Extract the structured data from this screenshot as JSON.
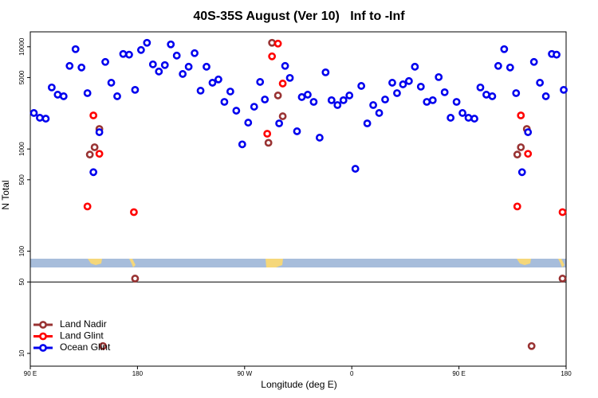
{
  "chart_data": {
    "type": "scatter",
    "title": "40S-35S August (Ver 10)   Inf to -Inf",
    "x_label": "Longitude (deg E)",
    "y_label": "N Total",
    "log_y": true,
    "legend": "lower left",
    "reference_line": 50,
    "xlim": [
      90,
      540
    ],
    "xticks": [
      {
        "value": 90,
        "label": "90 E"
      },
      180,
      {
        "value": 270,
        "label": "90 W"
      },
      {
        "value": 360,
        "label": "0"
      },
      {
        "value": 450,
        "label": "90 E"
      },
      {
        "value": 540,
        "label": "180"
      }
    ],
    "ylim": [
      7.5,
      14000
    ],
    "yticks": [
      10,
      50,
      100,
      500,
      1000,
      5000,
      10000
    ],
    "series": [
      {
        "name": "Land Nadir",
        "color": "#993333",
        "x": [
          140,
          144,
          148,
          151,
          178,
          290,
          293,
          298,
          302,
          499,
          502,
          507,
          511,
          537
        ],
        "values": [
          882,
          1040,
          1570,
          11.8,
          54,
          1150,
          10940,
          3340,
          2090,
          882,
          1040,
          1570,
          11.8,
          54
        ]
      },
      {
        "name": "Land Glint",
        "color": "#ff0000",
        "x": [
          138,
          143,
          148,
          177,
          289,
          293,
          298,
          302,
          499,
          502,
          508,
          537
        ],
        "values": [
          274,
          2130,
          897,
          241,
          1410,
          8060,
          10740,
          4370,
          274,
          2130,
          897,
          241
        ]
      },
      {
        "name": "Ocean Glint",
        "color": "#0000ee",
        "x": [
          93,
          98,
          103,
          108,
          113,
          118,
          123,
          128,
          133,
          138,
          143,
          148,
          153,
          158,
          163,
          168,
          173,
          178,
          183,
          188,
          193,
          198,
          203,
          208,
          213,
          218,
          223,
          228,
          233,
          238,
          243,
          248,
          253,
          258,
          263,
          268,
          273,
          278,
          283,
          287,
          299,
          304,
          308,
          314,
          318,
          323,
          328,
          333,
          338,
          343,
          348,
          353,
          358,
          363,
          368,
          373,
          378,
          383,
          388,
          394,
          398,
          403,
          408,
          413,
          418,
          423,
          428,
          433,
          438,
          443,
          448,
          453,
          458,
          463,
          468,
          473,
          478,
          483,
          488,
          493,
          498,
          503,
          508,
          513,
          518,
          523,
          528,
          532,
          538
        ],
        "values": [
          2250,
          2020,
          1980,
          4000,
          3400,
          3280,
          6500,
          9480,
          6270,
          3520,
          593,
          1460,
          7110,
          4450,
          3280,
          8510,
          8370,
          3790,
          9300,
          10940,
          6730,
          5730,
          6620,
          10550,
          8200,
          5420,
          6380,
          8660,
          3720,
          6380,
          4450,
          4790,
          2890,
          3650,
          2370,
          1110,
          1810,
          2590,
          4530,
          3050,
          1780,
          6500,
          4960,
          1490,
          3220,
          3400,
          2890,
          1290,
          5620,
          3000,
          2690,
          3000,
          3340,
          640,
          4140,
          1780,
          2690,
          2250,
          3050,
          4450,
          3520,
          4290,
          4620,
          6380,
          4070,
          2890,
          3000,
          5050,
          3590,
          2020,
          2890,
          2250,
          2020,
          1980,
          4000,
          3400,
          3280,
          6500,
          9480,
          6270,
          3520,
          593,
          1460,
          7110,
          4450,
          3280,
          8510,
          8370,
          3790
        ]
      }
    ]
  }
}
